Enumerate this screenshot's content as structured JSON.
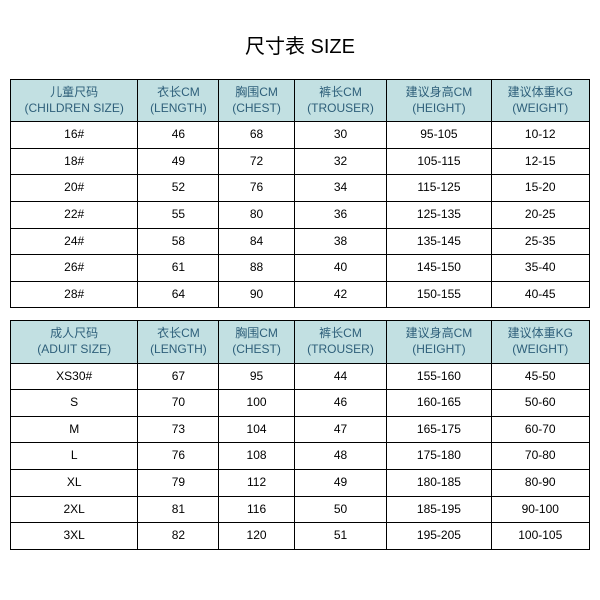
{
  "title": "尺寸表 SIZE",
  "children": {
    "headers": [
      {
        "cn": "儿童尺码",
        "en": "(CHILDREN SIZE)"
      },
      {
        "cn": "衣长CM",
        "en": "(LENGTH)"
      },
      {
        "cn": "胸围CM",
        "en": "(CHEST)"
      },
      {
        "cn": "裤长CM",
        "en": "(TROUSER)"
      },
      {
        "cn": "建议身高CM",
        "en": "(HEIGHT)"
      },
      {
        "cn": "建议体重KG",
        "en": "(WEIGHT)"
      }
    ],
    "rows": [
      [
        "16#",
        "46",
        "68",
        "30",
        "95-105",
        "10-12"
      ],
      [
        "18#",
        "49",
        "72",
        "32",
        "105-115",
        "12-15"
      ],
      [
        "20#",
        "52",
        "76",
        "34",
        "115-125",
        "15-20"
      ],
      [
        "22#",
        "55",
        "80",
        "36",
        "125-135",
        "20-25"
      ],
      [
        "24#",
        "58",
        "84",
        "38",
        "135-145",
        "25-35"
      ],
      [
        "26#",
        "61",
        "88",
        "40",
        "145-150",
        "35-40"
      ],
      [
        "28#",
        "64",
        "90",
        "42",
        "150-155",
        "40-45"
      ]
    ]
  },
  "adult": {
    "headers": [
      {
        "cn": "成人尺码",
        "en": "(ADUIT SIZE)"
      },
      {
        "cn": "衣长CM",
        "en": "(LENGTH)"
      },
      {
        "cn": "胸围CM",
        "en": "(CHEST)"
      },
      {
        "cn": "裤长CM",
        "en": "(TROUSER)"
      },
      {
        "cn": "建议身高CM",
        "en": "(HEIGHT)"
      },
      {
        "cn": "建议体重KG",
        "en": "(WEIGHT)"
      }
    ],
    "rows": [
      [
        "XS30#",
        "67",
        "95",
        "44",
        "155-160",
        "45-50"
      ],
      [
        "S",
        "70",
        "100",
        "46",
        "160-165",
        "50-60"
      ],
      [
        "M",
        "73",
        "104",
        "47",
        "165-175",
        "60-70"
      ],
      [
        "L",
        "76",
        "108",
        "48",
        "175-180",
        "70-80"
      ],
      [
        "XL",
        "79",
        "112",
        "49",
        "180-185",
        "80-90"
      ],
      [
        "2XL",
        "81",
        "116",
        "50",
        "185-195",
        "90-100"
      ],
      [
        "3XL",
        "82",
        "120",
        "51",
        "195-205",
        "100-105"
      ]
    ]
  },
  "style": {
    "header_bg": "#c2e0e2",
    "header_text": "#2e5f7a",
    "border": "#000000",
    "body_bg": "#ffffff",
    "title_fontsize": 20,
    "cell_fontsize": 12
  }
}
